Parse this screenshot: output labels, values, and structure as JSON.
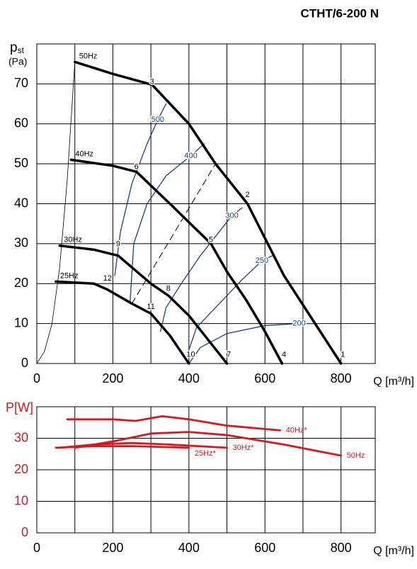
{
  "chart_data": [
    {
      "type": "line",
      "title": "CTHT/6-200 N",
      "y_label": "p",
      "y_label_sub": "st",
      "y_unit": "(Pa)",
      "x_label": "Q [m³/h]",
      "xlim": [
        0,
        890
      ],
      "xticks": [
        0,
        200,
        400,
        600,
        800
      ],
      "xminorticks": [
        100,
        300,
        500,
        700
      ],
      "ylim": [
        0,
        80
      ],
      "yticks": [
        0,
        10,
        20,
        30,
        40,
        50,
        60,
        70
      ],
      "grid": true,
      "series": [
        {
          "name": "50Hz",
          "color": "#000000",
          "x": [
            100,
            200,
            303,
            400,
            470,
            554,
            650,
            800
          ],
          "values": [
            75.5,
            72.5,
            69.8,
            60,
            50,
            40,
            22,
            0
          ]
        },
        {
          "name": "40Hz",
          "color": "#000000",
          "x": [
            90,
            200,
            262,
            350,
            458,
            500,
            550,
            600,
            645
          ],
          "values": [
            51,
            49.5,
            48,
            40,
            30,
            23,
            16,
            8,
            0
          ]
        },
        {
          "name": "30Hz",
          "color": "#000000",
          "x": [
            60,
            150,
            214,
            300,
            346,
            400,
            450,
            500
          ],
          "values": [
            29.5,
            28.5,
            27,
            20,
            17,
            12,
            6,
            0
          ]
        },
        {
          "name": "25Hz",
          "color": "#000000",
          "x": [
            50,
            150,
            186,
            250,
            300,
            350,
            400
          ],
          "values": [
            20.5,
            20,
            18.5,
            15,
            12.5,
            7,
            0
          ]
        }
      ],
      "contours": [
        {
          "name": "500",
          "color": "#1f3d8c",
          "x": [
            205,
            220,
            250,
            290,
            318,
            340
          ],
          "values": [
            22,
            33,
            45,
            55,
            61,
            65
          ]
        },
        {
          "name": "400",
          "color": "#1f3d8c",
          "x": [
            245,
            255,
            290,
            340,
            405,
            440
          ],
          "values": [
            15,
            30,
            40,
            47,
            52,
            55
          ]
        },
        {
          "name": "300",
          "color": "#1f3d8c",
          "x": [
            325,
            340,
            380,
            430,
            513,
            540
          ],
          "values": [
            8,
            14,
            20,
            27,
            37,
            39
          ]
        },
        {
          "name": "250",
          "color": "#1f3d8c",
          "x": [
            395,
            420,
            470,
            540,
            592,
            620
          ],
          "values": [
            2,
            9,
            14,
            21,
            25.7,
            27
          ]
        },
        {
          "name": "200",
          "color": "#1f3d8c",
          "x": [
            400,
            430,
            500,
            600,
            690,
            730
          ],
          "values": [
            0,
            4,
            7.5,
            9.5,
            10,
            10
          ]
        }
      ],
      "system_curve": {
        "x": [
          0,
          20,
          40,
          60,
          80,
          100
        ],
        "values": [
          0,
          3,
          10,
          24,
          46,
          75.5
        ]
      },
      "dashed_line": {
        "x": [
          250,
          470
        ],
        "values": [
          15,
          50
        ]
      },
      "points": {
        "labels": [
          "1",
          "2",
          "3",
          "4",
          "5",
          "6",
          "7",
          "8",
          "9",
          "10",
          "11",
          "12"
        ],
        "x": [
          805,
          554,
          303,
          650,
          458,
          262,
          505,
          346,
          214,
          405,
          300,
          186
        ],
        "values": [
          1.5,
          41.5,
          69.8,
          1.5,
          30.2,
          48.5,
          1.5,
          18,
          29.2,
          1.5,
          13.5,
          20.6
        ]
      }
    },
    {
      "type": "line",
      "y_label": "P[W]",
      "x_label": "Q [m³/h]",
      "xlim": [
        0,
        890
      ],
      "xticks": [
        0,
        200,
        400,
        600,
        800
      ],
      "xminorticks": [
        100,
        300,
        500,
        700
      ],
      "ylim": [
        0,
        40
      ],
      "yticks": [
        0,
        10,
        20,
        30
      ],
      "grid": true,
      "series": [
        {
          "name": "40Hz*",
          "color": "#d7191f",
          "x": [
            80,
            200,
            260,
            330,
            400,
            500,
            640
          ],
          "values": [
            36,
            36,
            35.5,
            37,
            36,
            34,
            32.5
          ]
        },
        {
          "name": "50Hz",
          "color": "#d7191f",
          "x": [
            100,
            200,
            300,
            400,
            500,
            650,
            800
          ],
          "values": [
            27,
            29,
            31.5,
            32,
            31,
            28,
            24.5
          ]
        },
        {
          "name": "30Hz*",
          "color": "#d7191f",
          "x": [
            60,
            150,
            250,
            350,
            500
          ],
          "values": [
            27,
            28,
            28.5,
            28,
            27
          ]
        },
        {
          "name": "25Hz*",
          "color": "#d7191f",
          "x": [
            50,
            150,
            250,
            400
          ],
          "values": [
            27,
            27.5,
            27.5,
            27
          ]
        }
      ]
    }
  ]
}
